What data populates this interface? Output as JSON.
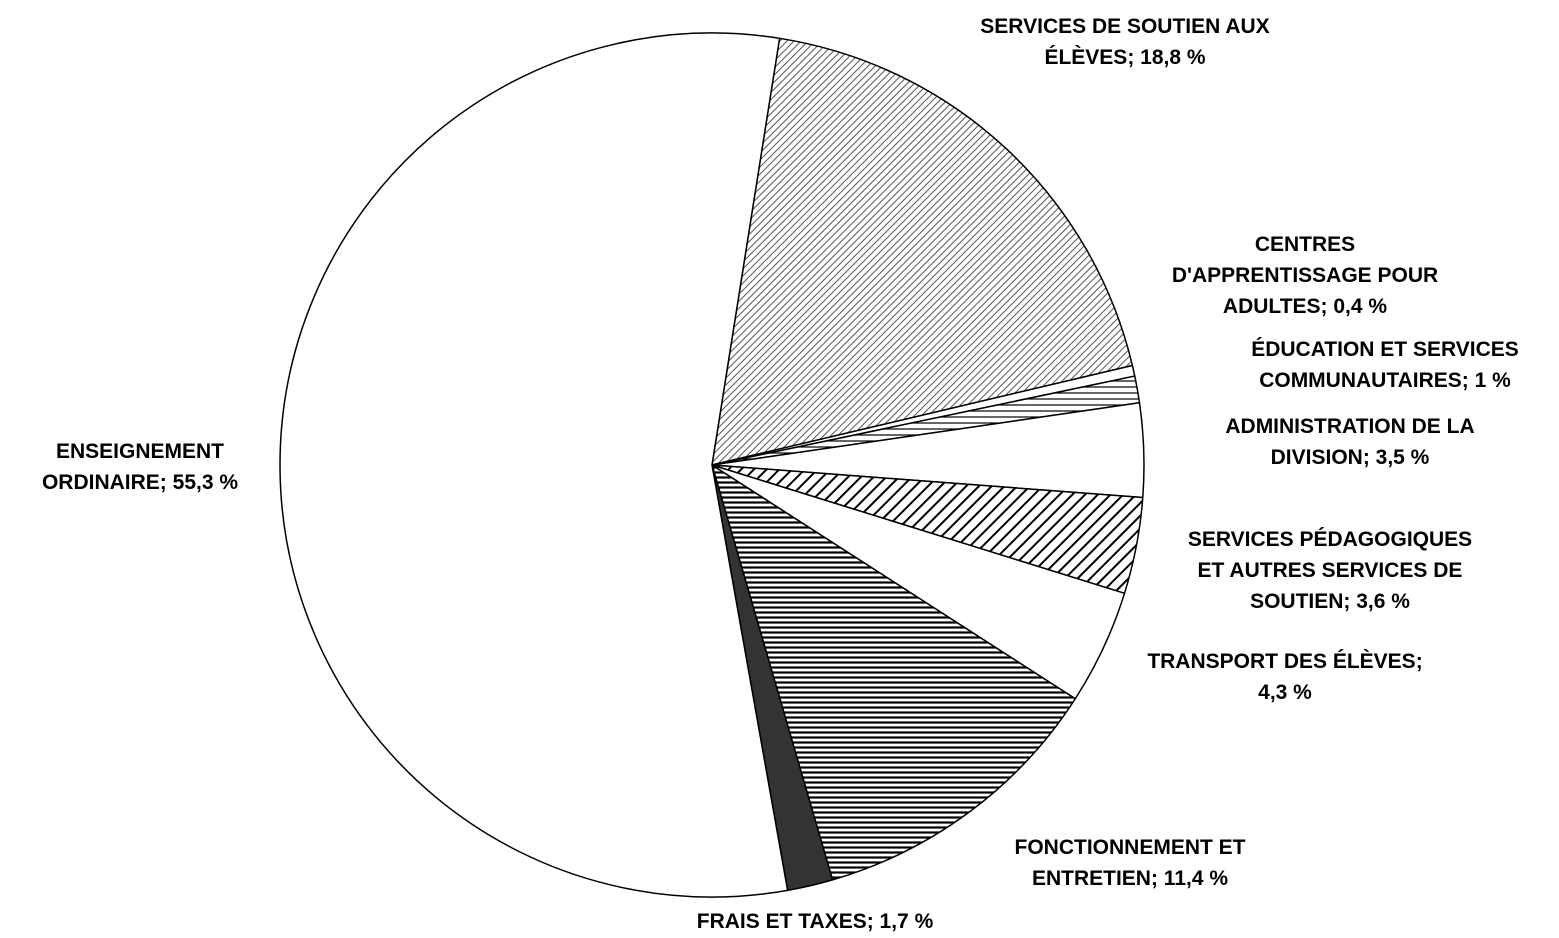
{
  "chart_data": {
    "type": "pie",
    "categories": [
      null,
      null,
      null,
      null,
      null,
      null,
      null,
      null,
      null
    ],
    "values": [
      18.8,
      0.4,
      1,
      3.5,
      3.6,
      4.3,
      11.4,
      1.7,
      55.3
    ],
    "value_labels": [
      [
        "SERVICES DE SOUTIEN AUX",
        "ÉLÈVES; 18,8 %"
      ],
      [
        "CENTRES",
        "D'APPRENTISSAGE POUR",
        "ADULTES; 0,4 %"
      ],
      [
        "ÉDUCATION ET SERVICES",
        "COMMUNAUTAIRES; 1 %"
      ],
      [
        "ADMINISTRATION DE LA",
        "DIVISION; 3,5 %"
      ],
      [
        "SERVICES PÉDAGOGIQUES",
        "ET AUTRES SERVICES DE",
        "SOUTIEN; 3,6 %"
      ],
      [
        "TRANSPORT DES ÉLÈVES;",
        "4,3 %"
      ],
      [
        "FONCTIONNEMENT ET",
        "ENTRETIEN; 11,4 %"
      ],
      [
        "FRAIS ET TAXES; 1,7 %"
      ],
      [
        "ENSEIGNEMENT",
        "ORDINAIRE; 55,3 %"
      ]
    ],
    "patterns": [
      "diagonal-fine",
      "none",
      "horizontal-sparse",
      "none",
      "diagonal-wide",
      "none",
      "horizontal-dense",
      "none",
      "none"
    ],
    "colors": [
      "#ffffff",
      "#ffffff",
      "#ffffff",
      "#ffffff",
      "#ffffff",
      "#ffffff",
      "#ffffff",
      "#333333",
      "#ffffff"
    ]
  }
}
